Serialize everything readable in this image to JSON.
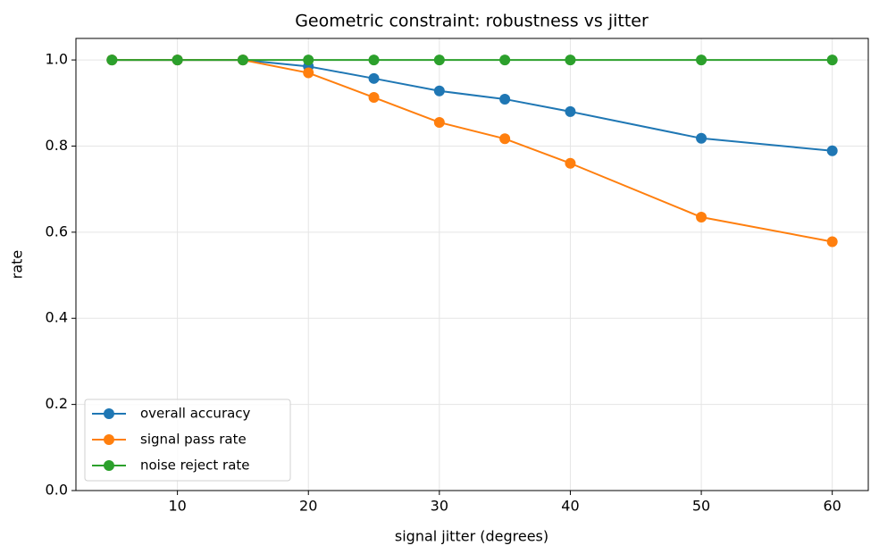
{
  "chart_data": {
    "type": "line",
    "title": "Geometric constraint: robustness vs jitter",
    "x_label": "signal jitter (degrees)",
    "y_label": "rate",
    "x": [
      5,
      10,
      15,
      20,
      25,
      30,
      35,
      40,
      50,
      60
    ],
    "series": [
      {
        "name": "overall accuracy",
        "color": "#1f77b4",
        "values": [
          1.0,
          1.0,
          1.0,
          0.985,
          0.957,
          0.928,
          0.909,
          0.88,
          0.818,
          0.789
        ]
      },
      {
        "name": "signal pass rate",
        "color": "#ff7f0e",
        "values": [
          1.0,
          1.0,
          1.0,
          0.97,
          0.913,
          0.855,
          0.817,
          0.76,
          0.635,
          0.578
        ]
      },
      {
        "name": "noise reject rate",
        "color": "#2ca02c",
        "values": [
          1.0,
          1.0,
          1.0,
          1.0,
          1.0,
          1.0,
          1.0,
          1.0,
          1.0,
          1.0
        ]
      }
    ],
    "xlim": [
      2.25,
      62.75
    ],
    "ylim": [
      0,
      1.05
    ],
    "xticks": [
      10,
      20,
      30,
      40,
      50,
      60
    ],
    "yticks": [
      {
        "value": 0,
        "label": "0.0"
      },
      0.2,
      0.4,
      0.6,
      0.8,
      {
        "value": 1,
        "label": "1.0"
      }
    ],
    "grid": true,
    "legend": "lower left"
  }
}
